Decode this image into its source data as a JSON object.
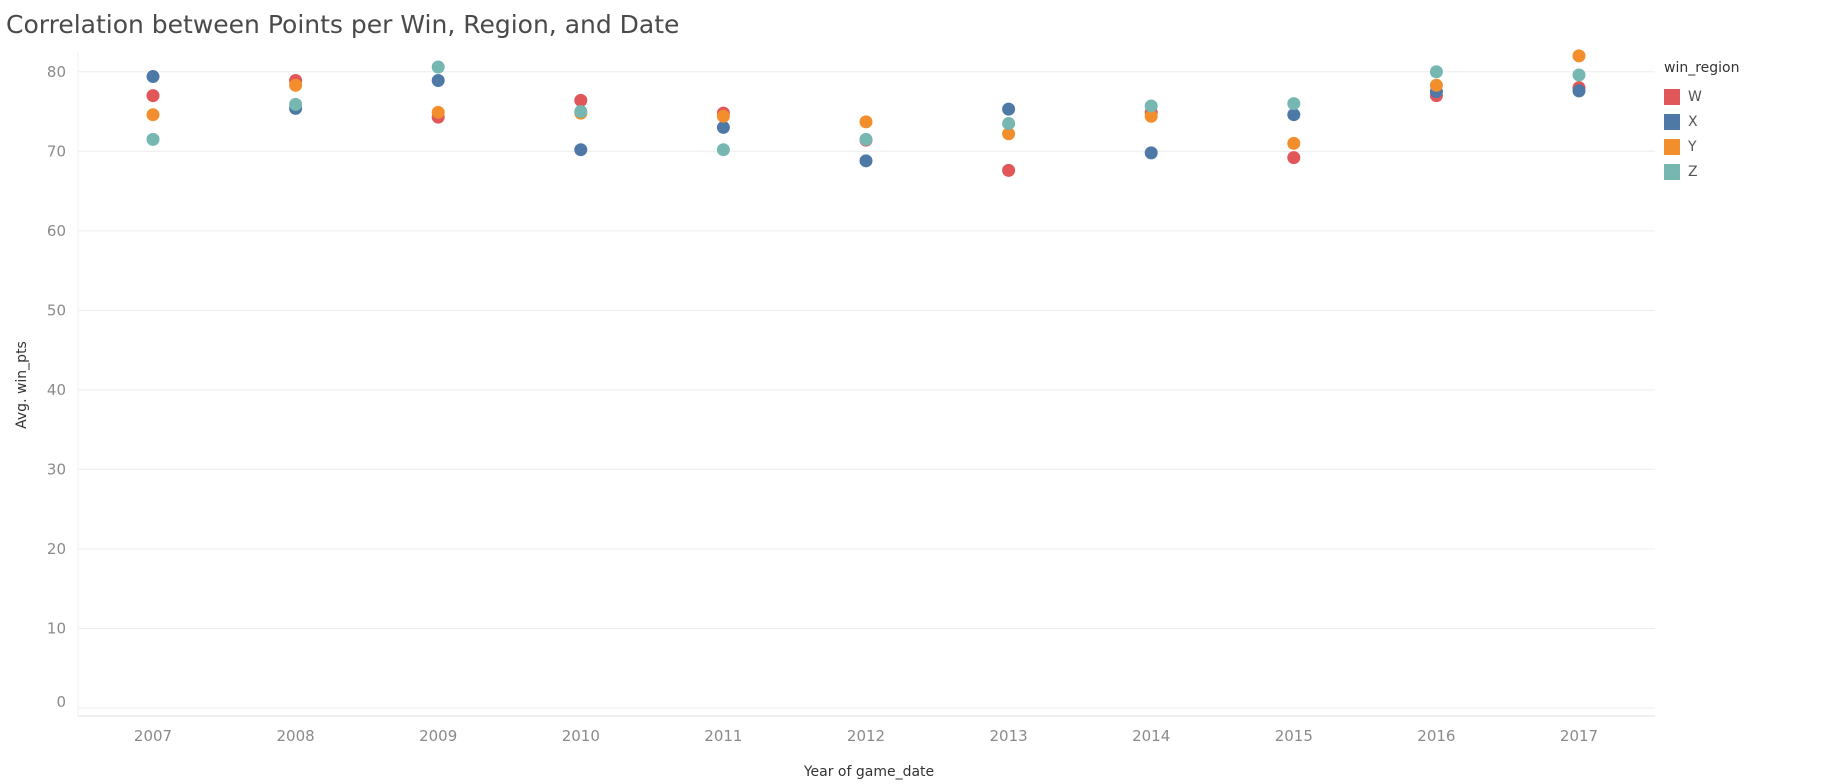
{
  "chart_data": {
    "type": "scatter",
    "title": "Correlation between Points per Win, Region, and Date",
    "xlabel": "Year of game_date",
    "ylabel": "Avg. win_pts",
    "x": [
      "2007",
      "2008",
      "2009",
      "2010",
      "2011",
      "2012",
      "2013",
      "2014",
      "2015",
      "2016",
      "2017"
    ],
    "ylim": [
      0,
      85
    ],
    "yticks": [
      0,
      10,
      20,
      30,
      40,
      50,
      60,
      70,
      80
    ],
    "grid": true,
    "legend_title": "win_region",
    "legend_position": "right",
    "series": [
      {
        "name": "W",
        "color": "#e15759",
        "values": [
          77.0,
          78.9,
          74.3,
          76.4,
          74.8,
          71.4,
          67.6,
          74.9,
          69.2,
          77.0,
          78.0
        ]
      },
      {
        "name": "X",
        "color": "#4e79a7",
        "values": [
          79.4,
          75.4,
          78.9,
          70.2,
          73.0,
          68.8,
          75.3,
          69.8,
          74.6,
          77.5,
          77.6
        ]
      },
      {
        "name": "Y",
        "color": "#f28e2b",
        "values": [
          74.6,
          78.3,
          74.9,
          74.8,
          74.4,
          73.7,
          72.2,
          74.4,
          71.0,
          78.3,
          82.0
        ]
      },
      {
        "name": "Z",
        "color": "#76b7b2",
        "values": [
          71.5,
          75.9,
          80.6,
          75.0,
          70.2,
          71.5,
          73.5,
          75.7,
          76.0,
          80.0,
          79.6
        ]
      }
    ]
  }
}
